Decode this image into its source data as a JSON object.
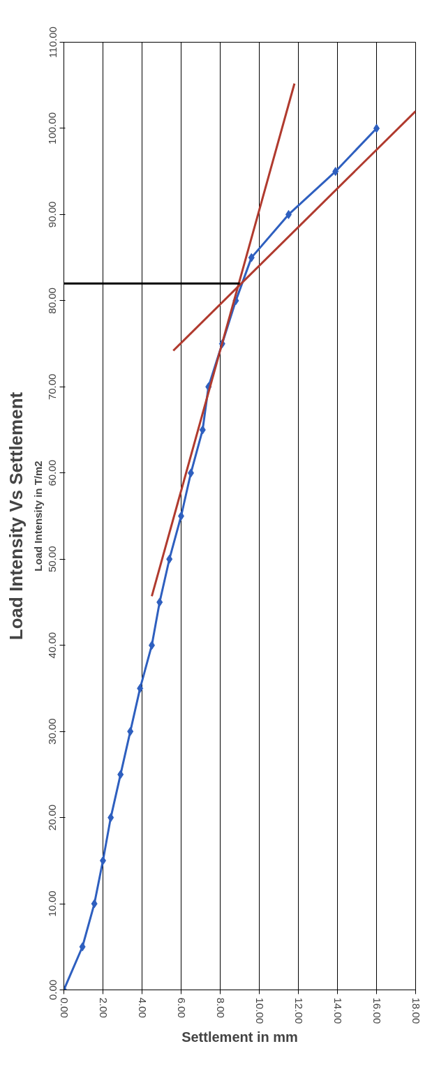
{
  "chart_data": {
    "type": "line",
    "title": "Load Intensity Vs Settlement",
    "xlabel": "Settlement in mm",
    "ylabel": "Load Intensity in T/m2",
    "xlim": [
      0,
      18
    ],
    "xticks": [
      {
        "value": 0,
        "label": "0.00"
      },
      {
        "value": 2,
        "label": "2.00"
      },
      {
        "value": 4,
        "label": "4.00"
      },
      {
        "value": 6,
        "label": "6.00"
      },
      {
        "value": 8,
        "label": "8.00"
      },
      {
        "value": 10,
        "label": "10.00"
      },
      {
        "value": 12,
        "label": "12.00"
      },
      {
        "value": 14,
        "label": "14.00"
      },
      {
        "value": 16,
        "label": "16.00"
      },
      {
        "value": 18,
        "label": "18.00"
      }
    ],
    "ylim": [
      0,
      110
    ],
    "yticks": [
      {
        "value": 0,
        "label": "0.00"
      },
      {
        "value": 10,
        "label": "10.00"
      },
      {
        "value": 20,
        "label": "20.00"
      },
      {
        "value": 30,
        "label": "30.00"
      },
      {
        "value": 40,
        "label": "40.00"
      },
      {
        "value": 50,
        "label": "50.00"
      },
      {
        "value": 60,
        "label": "60.00"
      },
      {
        "value": 70,
        "label": "70.00"
      },
      {
        "value": 80,
        "label": "80.00"
      },
      {
        "value": 90,
        "label": "90.00"
      },
      {
        "value": 100,
        "label": "100.00"
      },
      {
        "value": 110,
        "label": "110.00"
      }
    ],
    "grid": "x",
    "marker": "diamond",
    "line_style": "solid",
    "series": [
      {
        "color": "#2e5fbf",
        "x": [
          0,
          0.95,
          1.56,
          2.0,
          2.4,
          2.9,
          3.4,
          3.9,
          4.5,
          4.9,
          5.4,
          6.0,
          6.5,
          7.1,
          7.4,
          8.1,
          8.8,
          9.6,
          11.5,
          13.9,
          16.0
        ],
        "values": [
          0,
          5,
          10,
          15,
          20,
          25,
          30,
          35,
          40,
          45,
          50,
          55,
          60,
          65,
          70,
          75,
          80,
          85,
          90,
          95,
          100
        ]
      },
      {
        "color": "#b03a2e",
        "marker": "none",
        "x": [
          4.5,
          11.8
        ],
        "values": [
          45.7,
          105.2
        ]
      },
      {
        "color": "#b03a2e",
        "marker": "none",
        "x": [
          5.6,
          18.0
        ],
        "values": [
          74.2,
          102.0
        ]
      },
      {
        "color": "#000000",
        "marker": "none",
        "x": [
          0,
          9.0
        ],
        "values": [
          82.0,
          82.0
        ]
      }
    ]
  }
}
